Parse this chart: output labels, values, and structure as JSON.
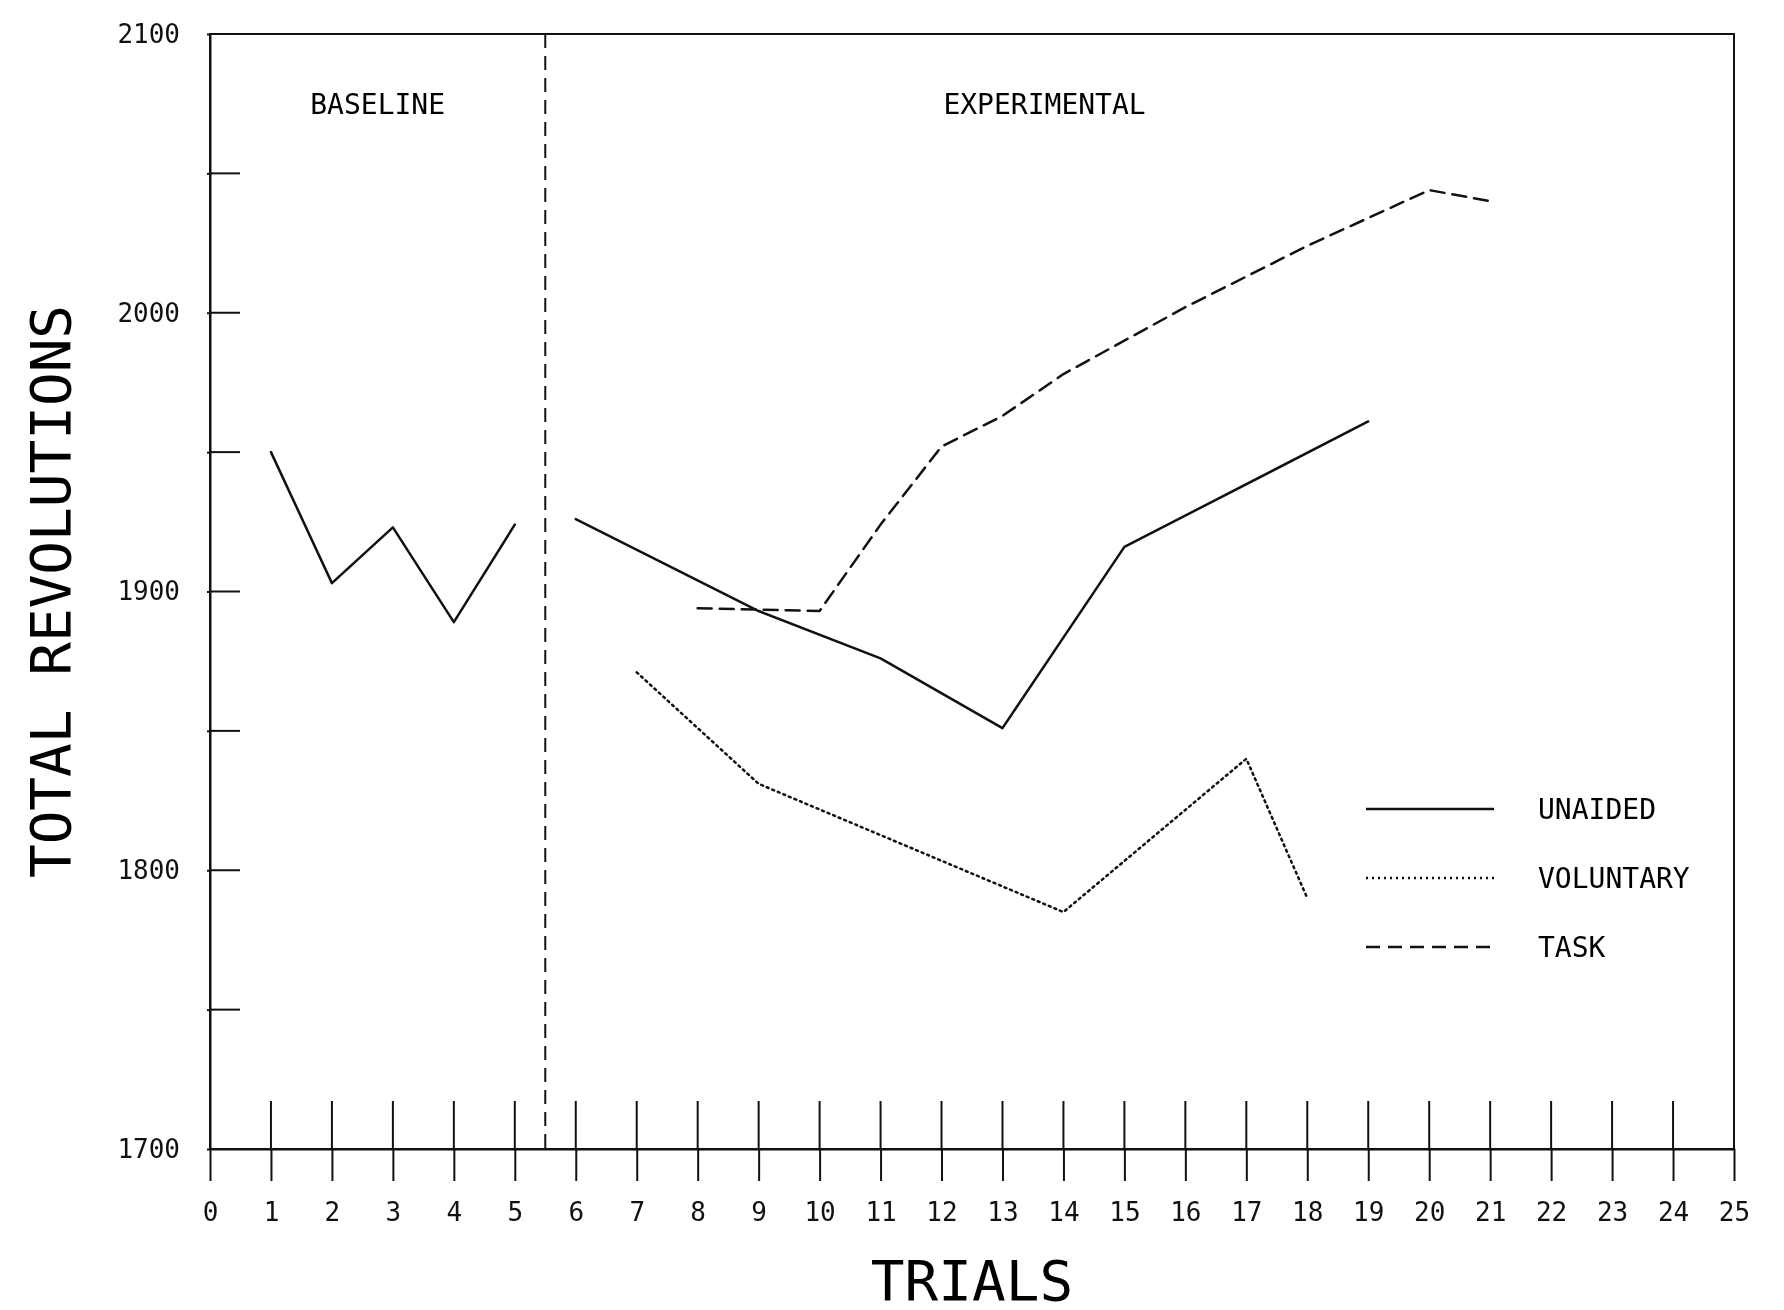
{
  "chart_data": {
    "type": "line",
    "xlabel": "TRIALS",
    "ylabel": "TOTAL REVOLUTIONS",
    "xlim": [
      0,
      25
    ],
    "xticks": [
      0,
      1,
      2,
      3,
      4,
      5,
      6,
      7,
      8,
      9,
      10,
      11,
      12,
      13,
      14,
      15,
      16,
      17,
      18,
      19,
      20,
      21,
      22,
      23,
      24,
      25
    ],
    "ylim": [
      1700,
      2100
    ],
    "yticks": [
      1700,
      {
        "value": 1750,
        "label": null
      },
      1800,
      {
        "value": 1850,
        "label": null
      },
      1900,
      {
        "value": 1950,
        "label": null
      },
      2000,
      {
        "value": 2050,
        "label": null
      },
      2100
    ],
    "grid": false,
    "legend": "right",
    "marker": "none",
    "series": [
      {
        "color": "#111111",
        "line_style": "solid",
        "x": [
          1,
          2,
          3,
          4,
          5
        ],
        "values": [
          1950,
          1903,
          1923,
          1889,
          1924
        ]
      },
      {
        "name": "UNAIDED",
        "color": "#111111",
        "line_style": "solid",
        "x": [
          6,
          9,
          11,
          13,
          15,
          19
        ],
        "values": [
          1926,
          1893,
          1876,
          1851,
          1916,
          1961
        ]
      },
      {
        "name": "VOLUNTARY",
        "color": "#111111",
        "line_style": "dotted",
        "x": [
          7,
          9,
          14,
          17,
          18
        ],
        "values": [
          1871,
          1831,
          1785,
          1840,
          1790
        ]
      },
      {
        "name": "TASK",
        "color": "#111111",
        "line_style": "dashed",
        "x": [
          8,
          10,
          11,
          12,
          13,
          14,
          16,
          18,
          20,
          21
        ],
        "values": [
          1894,
          1893,
          1924,
          1952,
          1963,
          1978,
          2002,
          2024,
          2044,
          2040
        ]
      }
    ],
    "ref_lines": [
      {
        "axis": "x",
        "value": 5.5,
        "line_style": "dashed",
        "color": "#111111"
      }
    ],
    "annotations": [
      "BASELINE",
      "EXPERIMENTAL"
    ]
  }
}
